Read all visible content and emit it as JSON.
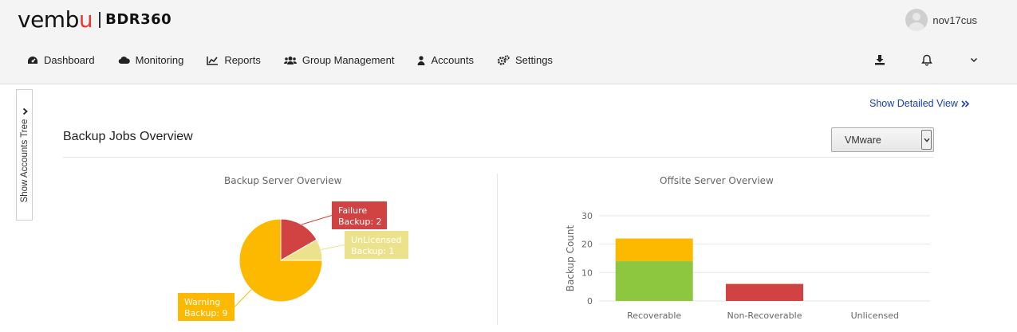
{
  "brand": {
    "logo_main": "vembu",
    "product": "BDR360"
  },
  "user": {
    "name": "nov17cus"
  },
  "nav": [
    {
      "label": "Dashboard",
      "icon": "dashboard-icon"
    },
    {
      "label": "Monitoring",
      "icon": "cloud-icon"
    },
    {
      "label": "Reports",
      "icon": "line-chart-icon"
    },
    {
      "label": "Group Management",
      "icon": "users-icon"
    },
    {
      "label": "Accounts",
      "icon": "user-icon"
    },
    {
      "label": "Settings",
      "icon": "cogs-icon"
    }
  ],
  "top_icons": [
    "download-icon",
    "bell-icon",
    "chevron-down-icon"
  ],
  "sidebar": {
    "tab_label": "Show Accounts Tree"
  },
  "main": {
    "detailed_link": "Show Detailed View",
    "title": "Backup Jobs Overview",
    "filter": {
      "selected": "VMware"
    }
  },
  "colors": {
    "failure": "#d14242",
    "unlicensed": "#ede28c",
    "warning": "#fdb900",
    "recoverable": "#8dc63f",
    "link": "#1a3fb0"
  },
  "chart_data": [
    {
      "type": "pie",
      "title": "Backup Server Overview",
      "slices": [
        {
          "label": "Failure Backup",
          "value": 2,
          "color": "#d14242",
          "label_line1": "Failure",
          "label_line2": "Backup: 2"
        },
        {
          "label": "UnLicensed Backup",
          "value": 1,
          "color": "#ede28c",
          "label_line1": "UnLicensed",
          "label_line2": "Backup: 1"
        },
        {
          "label": "Warning Backup",
          "value": 9,
          "color": "#fdb900",
          "label_line1": "Warning",
          "label_line2": "Backup: 9"
        }
      ]
    },
    {
      "type": "bar",
      "stacked": true,
      "title": "Offsite Server Overview",
      "ylabel": "Backup Count",
      "categories": [
        "Recoverable",
        "Non-Recoverable",
        "Unlicensed"
      ],
      "yticks": [
        0,
        10,
        20,
        30
      ],
      "ylim": [
        0,
        30
      ],
      "series": [
        {
          "values": [
            14,
            6,
            0
          ],
          "colors": [
            "#8dc63f",
            "#d14242",
            "#8dc63f"
          ]
        },
        {
          "values": [
            8,
            0,
            0
          ],
          "colors": [
            "#fdb900",
            "#fdb900",
            "#fdb900"
          ]
        }
      ]
    }
  ]
}
